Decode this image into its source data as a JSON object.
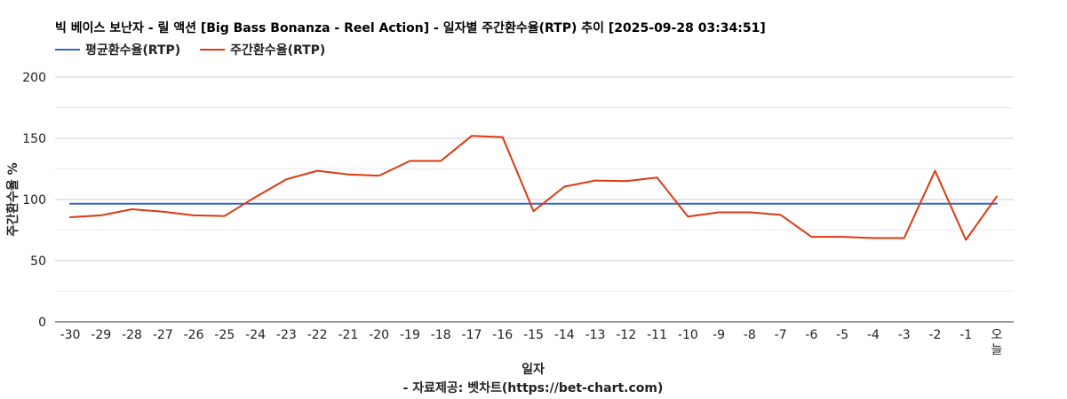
{
  "chart_data": {
    "type": "line",
    "title": "빅 베이스 보난자 - 릴 액션 [Big Bass Bonanza - Reel Action] - 일자별 주간환수율(RTP) 추이 [2025-09-28 03:34:51]",
    "xlabel": "일자",
    "ylabel": "주간환수율 %",
    "source": "- 자료제공: 벳차트(https://bet-chart.com)",
    "categories": [
      "-30",
      "-29",
      "-28",
      "-27",
      "-26",
      "-25",
      "-24",
      "-23",
      "-22",
      "-21",
      "-20",
      "-19",
      "-18",
      "-17",
      "-16",
      "-15",
      "-14",
      "-13",
      "-12",
      "-11",
      "-10",
      "-9",
      "-8",
      "-7",
      "-6",
      "-5",
      "-4",
      "-3",
      "-2",
      "-1",
      "오늘"
    ],
    "yticks": [
      "200",
      "150",
      "100",
      "50",
      "0"
    ],
    "ylim": [
      0,
      200
    ],
    "grid": true,
    "legend_position": "top-left",
    "series": [
      {
        "name": "평균환수율(RTP)",
        "color": "#3366cc",
        "values": [
          96.5,
          96.5,
          96.5,
          96.5,
          96.5,
          96.5,
          96.5,
          96.5,
          96.5,
          96.5,
          96.5,
          96.5,
          96.5,
          96.5,
          96.5,
          96.5,
          96.5,
          96.5,
          96.5,
          96.5,
          96.5,
          96.5,
          96.5,
          96.5,
          96.5,
          96.5,
          96.5,
          96.5,
          96.5,
          96.5,
          96.5
        ]
      },
      {
        "name": "주간환수율(RTP)",
        "color": "#dc3912",
        "values": [
          85.5,
          87,
          92,
          90,
          87,
          86.5,
          102,
          116.5,
          123.5,
          120.5,
          119.5,
          131.5,
          131.5,
          152,
          151,
          90.5,
          110.5,
          115.5,
          115,
          118,
          86,
          89.5,
          89.5,
          87.5,
          69.5,
          69.5,
          68.5,
          68.5,
          123.5,
          67,
          102.5
        ]
      }
    ]
  }
}
